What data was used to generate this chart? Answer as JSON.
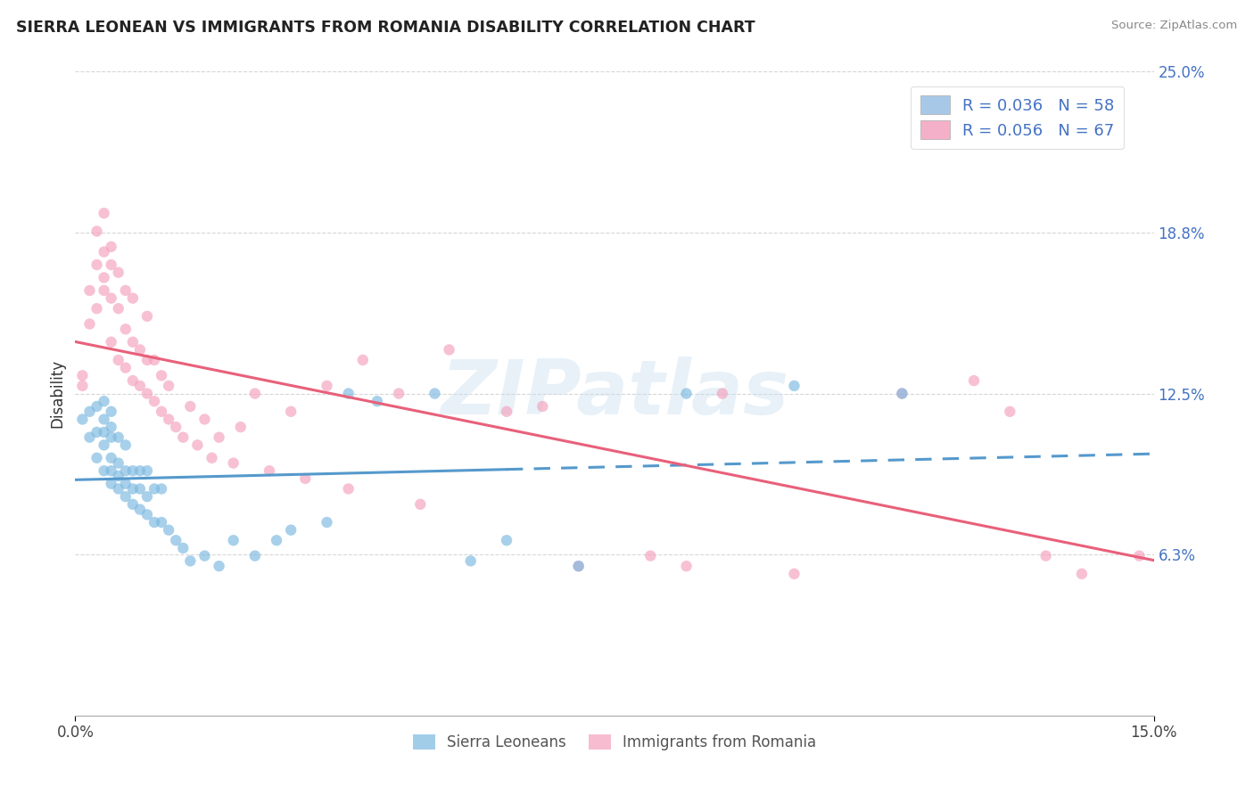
{
  "title": "SIERRA LEONEAN VS IMMIGRANTS FROM ROMANIA DISABILITY CORRELATION CHART",
  "source": "Source: ZipAtlas.com",
  "ylabel": "Disability",
  "xlim": [
    0.0,
    0.15
  ],
  "ylim": [
    0.0,
    0.25
  ],
  "xtick_positions": [
    0.0,
    0.15
  ],
  "xtick_labels": [
    "0.0%",
    "15.0%"
  ],
  "ytick_values": [
    0.0,
    0.0625,
    0.125,
    0.1875,
    0.25
  ],
  "ytick_labels": [
    "",
    "6.3%",
    "12.5%",
    "18.8%",
    "25.0%"
  ],
  "legend_r_entries": [
    {
      "label": "R = 0.036   N = 58",
      "color": "#a8c8e8"
    },
    {
      "label": "R = 0.056   N = 67",
      "color": "#f4b0c8"
    }
  ],
  "legend_labels_bottom": [
    "Sierra Leoneans",
    "Immigrants from Romania"
  ],
  "sierra_leone_color": "#7ab8e0",
  "romania_color": "#f4a0bc",
  "sierra_leone_line_color": "#5599cc",
  "romania_line_color": "#e8607a",
  "watermark": "ZIPatlas",
  "sierra_leone_N": 58,
  "romania_N": 67,
  "sl_x": [
    0.001,
    0.002,
    0.002,
    0.003,
    0.003,
    0.003,
    0.004,
    0.004,
    0.004,
    0.004,
    0.004,
    0.005,
    0.005,
    0.005,
    0.005,
    0.005,
    0.005,
    0.006,
    0.006,
    0.006,
    0.006,
    0.007,
    0.007,
    0.007,
    0.007,
    0.008,
    0.008,
    0.008,
    0.009,
    0.009,
    0.009,
    0.01,
    0.01,
    0.01,
    0.011,
    0.011,
    0.012,
    0.012,
    0.013,
    0.014,
    0.015,
    0.016,
    0.018,
    0.02,
    0.022,
    0.025,
    0.028,
    0.03,
    0.035,
    0.038,
    0.042,
    0.05,
    0.055,
    0.06,
    0.07,
    0.085,
    0.1,
    0.115
  ],
  "sl_y": [
    0.115,
    0.118,
    0.108,
    0.1,
    0.11,
    0.12,
    0.095,
    0.105,
    0.11,
    0.115,
    0.122,
    0.09,
    0.095,
    0.1,
    0.108,
    0.112,
    0.118,
    0.088,
    0.093,
    0.098,
    0.108,
    0.085,
    0.09,
    0.095,
    0.105,
    0.082,
    0.088,
    0.095,
    0.08,
    0.088,
    0.095,
    0.078,
    0.085,
    0.095,
    0.075,
    0.088,
    0.075,
    0.088,
    0.072,
    0.068,
    0.065,
    0.06,
    0.062,
    0.058,
    0.068,
    0.062,
    0.068,
    0.072,
    0.075,
    0.125,
    0.122,
    0.125,
    0.06,
    0.068,
    0.058,
    0.125,
    0.128,
    0.125
  ],
  "ro_x": [
    0.001,
    0.001,
    0.002,
    0.002,
    0.003,
    0.003,
    0.003,
    0.004,
    0.004,
    0.004,
    0.004,
    0.005,
    0.005,
    0.005,
    0.005,
    0.006,
    0.006,
    0.006,
    0.007,
    0.007,
    0.007,
    0.008,
    0.008,
    0.008,
    0.009,
    0.009,
    0.01,
    0.01,
    0.01,
    0.011,
    0.011,
    0.012,
    0.012,
    0.013,
    0.013,
    0.014,
    0.015,
    0.016,
    0.017,
    0.018,
    0.019,
    0.02,
    0.022,
    0.023,
    0.025,
    0.027,
    0.03,
    0.032,
    0.035,
    0.038,
    0.04,
    0.045,
    0.048,
    0.052,
    0.06,
    0.065,
    0.07,
    0.08,
    0.085,
    0.09,
    0.1,
    0.115,
    0.125,
    0.13,
    0.135,
    0.14,
    0.148
  ],
  "ro_y": [
    0.132,
    0.128,
    0.152,
    0.165,
    0.175,
    0.158,
    0.188,
    0.17,
    0.18,
    0.195,
    0.165,
    0.145,
    0.162,
    0.175,
    0.182,
    0.138,
    0.158,
    0.172,
    0.135,
    0.15,
    0.165,
    0.13,
    0.145,
    0.162,
    0.128,
    0.142,
    0.125,
    0.138,
    0.155,
    0.122,
    0.138,
    0.118,
    0.132,
    0.115,
    0.128,
    0.112,
    0.108,
    0.12,
    0.105,
    0.115,
    0.1,
    0.108,
    0.098,
    0.112,
    0.125,
    0.095,
    0.118,
    0.092,
    0.128,
    0.088,
    0.138,
    0.125,
    0.082,
    0.142,
    0.118,
    0.12,
    0.058,
    0.062,
    0.058,
    0.125,
    0.055,
    0.125,
    0.13,
    0.118,
    0.062,
    0.055,
    0.062
  ]
}
